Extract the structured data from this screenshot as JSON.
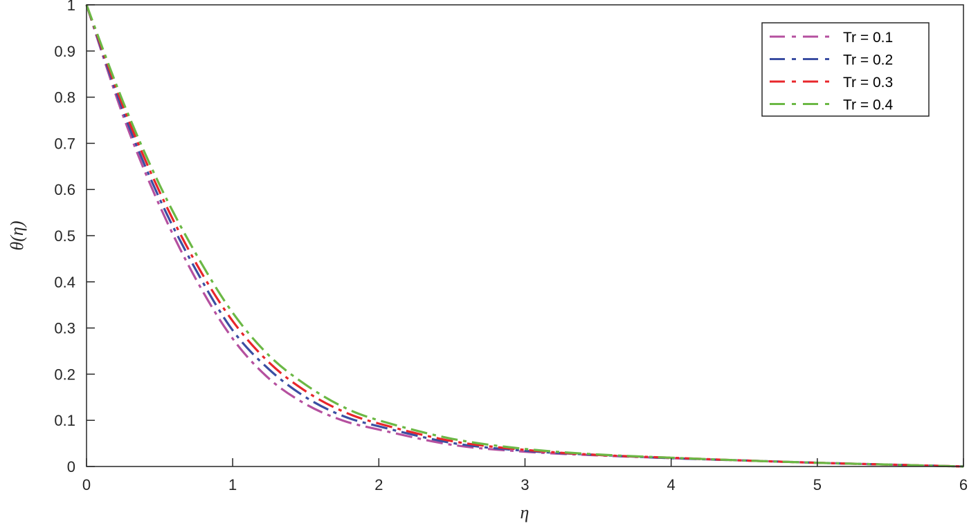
{
  "chart_data": {
    "type": "line",
    "title": "",
    "xlabel": "η",
    "ylabel": "θ(η)",
    "xlim": [
      0,
      6
    ],
    "ylim": [
      0,
      1
    ],
    "xticks": [
      0,
      1,
      2,
      3,
      4,
      5,
      6
    ],
    "yticks": [
      0,
      0.1,
      0.2,
      0.3,
      0.4,
      0.5,
      0.6,
      0.7,
      0.8,
      0.9,
      1
    ],
    "grid": false,
    "legend_position": "top-right",
    "line_style": "dash-dot",
    "x": [
      0,
      0.25,
      0.5,
      0.75,
      1,
      1.25,
      1.5,
      1.75,
      2,
      2.5,
      3,
      3.5,
      4,
      4.5,
      5,
      5.5,
      6
    ],
    "series": [
      {
        "name": "Tr = 0.1",
        "color": "#B5509F",
        "values": [
          1,
          0.76,
          0.565,
          0.405,
          0.277,
          0.19,
          0.135,
          0.1,
          0.08,
          0.047,
          0.032,
          0.024,
          0.018,
          0.013,
          0.008,
          0.004,
          0
        ]
      },
      {
        "name": "Tr = 0.2",
        "color": "#3B4EA2",
        "values": [
          1,
          0.77,
          0.58,
          0.425,
          0.295,
          0.21,
          0.15,
          0.11,
          0.087,
          0.051,
          0.034,
          0.025,
          0.018,
          0.013,
          0.008,
          0.004,
          0
        ]
      },
      {
        "name": "Tr = 0.3",
        "color": "#E8262B",
        "values": [
          1,
          0.78,
          0.595,
          0.44,
          0.315,
          0.225,
          0.163,
          0.12,
          0.093,
          0.055,
          0.036,
          0.025,
          0.019,
          0.013,
          0.008,
          0.004,
          0
        ]
      },
      {
        "name": "Tr = 0.4",
        "color": "#6BB845",
        "values": [
          1,
          0.79,
          0.61,
          0.46,
          0.333,
          0.24,
          0.177,
          0.13,
          0.1,
          0.06,
          0.038,
          0.026,
          0.019,
          0.013,
          0.008,
          0.004,
          0
        ]
      }
    ]
  }
}
